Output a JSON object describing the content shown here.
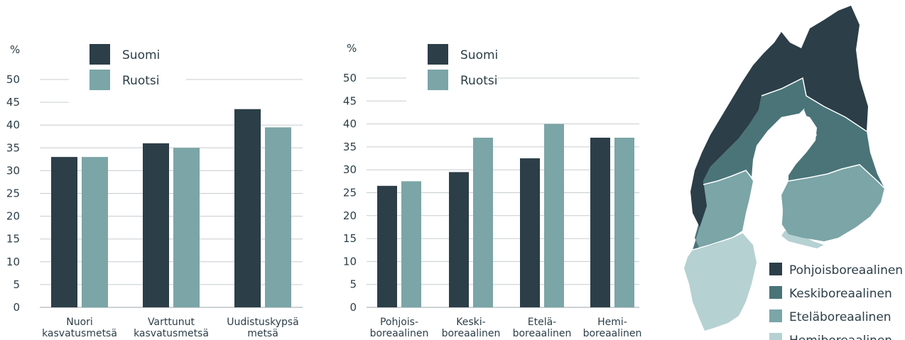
{
  "colors": {
    "suomi": "#2c3e48",
    "ruotsi": "#7ba5a7"
  },
  "chart_data": [
    {
      "type": "bar",
      "ylabel": "%",
      "ylim": [
        0,
        50
      ],
      "yticks": [
        0,
        5,
        10,
        15,
        20,
        25,
        30,
        35,
        40,
        45,
        50
      ],
      "legend_position": "top",
      "categories": [
        [
          "Nuori",
          "kasvatusmetsä"
        ],
        [
          "Varttunut",
          "kasvatusmetsä"
        ],
        [
          "Uudistuskypsä",
          "metsä"
        ]
      ],
      "series": [
        {
          "name": "Suomi",
          "values": [
            33,
            36,
            43.5
          ]
        },
        {
          "name": "Ruotsi",
          "values": [
            33,
            35,
            39.5
          ]
        }
      ]
    },
    {
      "type": "bar",
      "ylabel": "%",
      "ylim": [
        0,
        50
      ],
      "yticks": [
        0,
        5,
        10,
        15,
        20,
        25,
        30,
        35,
        40,
        45,
        50
      ],
      "legend_position": "top",
      "categories": [
        [
          "Pohjois-",
          "boreaalinen"
        ],
        [
          "Keski-",
          "boreaalinen"
        ],
        [
          "Etelä-",
          "boreaalinen"
        ],
        [
          "Hemi-",
          "boreaalinen"
        ]
      ],
      "series": [
        {
          "name": "Suomi",
          "values": [
            26.5,
            29.5,
            32.5,
            37
          ]
        },
        {
          "name": "Ruotsi",
          "values": [
            27.5,
            37,
            40,
            37
          ]
        }
      ]
    }
  ],
  "map": {
    "legend": [
      {
        "label": "Pohjoisboreaalinen",
        "color": "#2c3e48"
      },
      {
        "label": "Keskiboreaalinen",
        "color": "#4a7478"
      },
      {
        "label": "Eteläboreaalinen",
        "color": "#7ba5a7"
      },
      {
        "label": "Hemiboreaalinen",
        "color": "#b6d1d2"
      }
    ]
  }
}
